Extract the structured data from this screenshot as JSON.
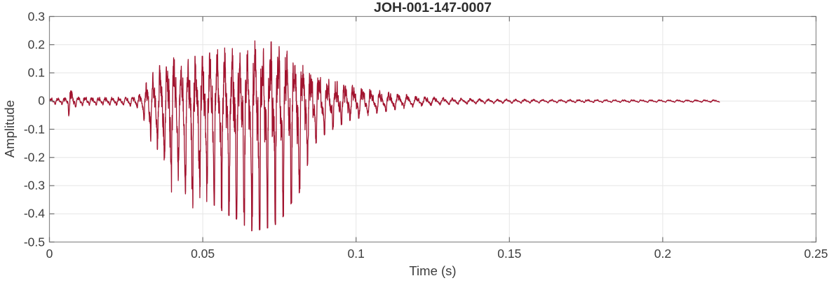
{
  "chart_data": {
    "type": "line",
    "title": "JOH-001-147-0007",
    "xlabel": "Time (s)",
    "ylabel": "Amplitude",
    "xlim": [
      0,
      0.25
    ],
    "ylim": [
      -0.5,
      0.3
    ],
    "grid": true,
    "legend": false,
    "xticks": {
      "values": [
        0,
        0.05,
        0.1,
        0.15,
        0.2,
        0.25
      ],
      "labels": [
        "0",
        "0.05",
        "0.1",
        "0.15",
        "0.2",
        "0.25"
      ]
    },
    "yticks": {
      "values": [
        0.3,
        0.2,
        0.1,
        0,
        -0.1,
        -0.2,
        -0.3,
        -0.4,
        -0.5
      ],
      "labels": [
        "0.3",
        "0.2",
        "0.1",
        "0",
        "-0.1",
        "-0.2",
        "-0.3",
        "-0.4",
        "-0.5"
      ]
    },
    "colors": {
      "line": "#A2142F",
      "grid": "#e6e6e6",
      "axis_box": "#8a8a8a",
      "tick": "#6e6e6e",
      "text": "#3d3d3d",
      "title_text": "#2e2e2e"
    },
    "signal": {
      "description": "speech-like waveform: quiet onset, small click at 0.0065 s, strong voiced burst 0.031-0.085 s (peaks +0.21 / -0.44), decaying oscillation to 0.12 s, near-silent tail ending at 0.2185 s",
      "t_start": 0,
      "t_end": 0.2185,
      "pitch_hz_start": 450,
      "pitch_hz_end": 340,
      "peak_positive": 0.21,
      "peak_negative": -0.44,
      "envelope": [
        [
          0.0,
          -0.01,
          0.01
        ],
        [
          0.004,
          -0.012,
          0.012
        ],
        [
          0.0058,
          -0.014,
          0.014
        ],
        [
          0.0063,
          -0.05,
          0.048
        ],
        [
          0.007,
          -0.05,
          0.048
        ],
        [
          0.0078,
          -0.022,
          0.02
        ],
        [
          0.01,
          -0.016,
          0.016
        ],
        [
          0.016,
          -0.013,
          0.013
        ],
        [
          0.022,
          -0.014,
          0.014
        ],
        [
          0.028,
          -0.018,
          0.018
        ],
        [
          0.03,
          -0.035,
          0.03
        ],
        [
          0.0315,
          -0.11,
          0.06
        ],
        [
          0.034,
          -0.15,
          0.1
        ],
        [
          0.037,
          -0.23,
          0.13
        ],
        [
          0.04,
          -0.31,
          0.15
        ],
        [
          0.043,
          -0.28,
          0.12
        ],
        [
          0.0465,
          -0.36,
          0.15
        ],
        [
          0.05,
          -0.33,
          0.15
        ],
        [
          0.054,
          -0.35,
          0.17
        ],
        [
          0.058,
          -0.38,
          0.18
        ],
        [
          0.062,
          -0.4,
          0.17
        ],
        [
          0.0655,
          -0.435,
          0.21
        ],
        [
          0.069,
          -0.43,
          0.19
        ],
        [
          0.073,
          -0.42,
          0.2
        ],
        [
          0.076,
          -0.39,
          0.185
        ],
        [
          0.079,
          -0.34,
          0.15
        ],
        [
          0.082,
          -0.3,
          0.13
        ],
        [
          0.0845,
          -0.2,
          0.115
        ],
        [
          0.087,
          -0.14,
          0.095
        ],
        [
          0.09,
          -0.11,
          0.08
        ],
        [
          0.094,
          -0.085,
          0.065
        ],
        [
          0.098,
          -0.065,
          0.055
        ],
        [
          0.102,
          -0.055,
          0.048
        ],
        [
          0.106,
          -0.042,
          0.038
        ],
        [
          0.11,
          -0.035,
          0.032
        ],
        [
          0.115,
          -0.026,
          0.024
        ],
        [
          0.12,
          -0.018,
          0.017
        ],
        [
          0.13,
          -0.012,
          0.011
        ],
        [
          0.14,
          -0.009,
          0.008
        ],
        [
          0.155,
          -0.007,
          0.006
        ],
        [
          0.175,
          -0.005,
          0.005
        ],
        [
          0.2,
          -0.004,
          0.004
        ],
        [
          0.2185,
          -0.004,
          0.004
        ]
      ]
    }
  }
}
